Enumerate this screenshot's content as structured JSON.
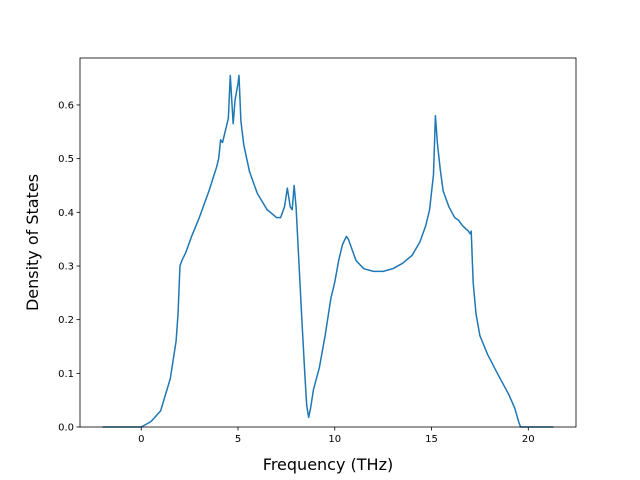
{
  "chart_data": {
    "type": "line",
    "xlabel": "Frequency (THz)",
    "ylabel": "Density of States",
    "x": [
      -2,
      0,
      0.5,
      1,
      1.5,
      1.8,
      1.9,
      2.0,
      2.1,
      2.3,
      2.6,
      3.0,
      3.5,
      3.9,
      4.0,
      4.1,
      4.2,
      4.5,
      4.6,
      4.75,
      4.85,
      5.0,
      5.05,
      5.15,
      5.3,
      5.6,
      6.0,
      6.5,
      7.0,
      7.2,
      7.4,
      7.55,
      7.7,
      7.8,
      7.9,
      8.0,
      8.1,
      8.3,
      8.45,
      8.55,
      8.65,
      8.75,
      8.9,
      9.2,
      9.5,
      9.8,
      10.0,
      10.2,
      10.4,
      10.6,
      10.7,
      10.9,
      11.1,
      11.5,
      12.0,
      12.5,
      13.0,
      13.5,
      14.0,
      14.4,
      14.7,
      14.9,
      15.1,
      15.2,
      15.3,
      15.45,
      15.6,
      15.9,
      16.2,
      16.4,
      16.6,
      16.9,
      17.0,
      17.05,
      17.15,
      17.3,
      17.5,
      17.9,
      18.4,
      19.0,
      19.3,
      19.5,
      19.6,
      21.3
    ],
    "series": [
      {
        "color": "#1f77b4",
        "values": [
          0,
          0,
          0.01,
          0.03,
          0.09,
          0.16,
          0.21,
          0.3,
          0.31,
          0.325,
          0.355,
          0.39,
          0.44,
          0.485,
          0.5,
          0.535,
          0.53,
          0.575,
          0.655,
          0.565,
          0.61,
          0.64,
          0.655,
          0.57,
          0.525,
          0.475,
          0.435,
          0.405,
          0.39,
          0.39,
          0.41,
          0.445,
          0.41,
          0.405,
          0.45,
          0.41,
          0.34,
          0.2,
          0.1,
          0.04,
          0.018,
          0.035,
          0.07,
          0.11,
          0.17,
          0.24,
          0.27,
          0.31,
          0.34,
          0.355,
          0.35,
          0.33,
          0.31,
          0.295,
          0.29,
          0.29,
          0.295,
          0.305,
          0.32,
          0.345,
          0.375,
          0.405,
          0.47,
          0.58,
          0.53,
          0.48,
          0.44,
          0.41,
          0.39,
          0.385,
          0.375,
          0.365,
          0.36,
          0.365,
          0.27,
          0.21,
          0.17,
          0.135,
          0.1,
          0.06,
          0.035,
          0.01,
          0,
          0
        ]
      }
    ],
    "xlim": [
      -3.165,
      22.465
    ],
    "xticks": [
      0,
      5,
      10,
      15,
      20
    ],
    "ylim": [
      0,
      0.6875
    ],
    "yticks": [
      {
        "value": 0,
        "label": "0.0"
      },
      0.1,
      0.2,
      0.3,
      0.4,
      0.5,
      0.6
    ]
  }
}
